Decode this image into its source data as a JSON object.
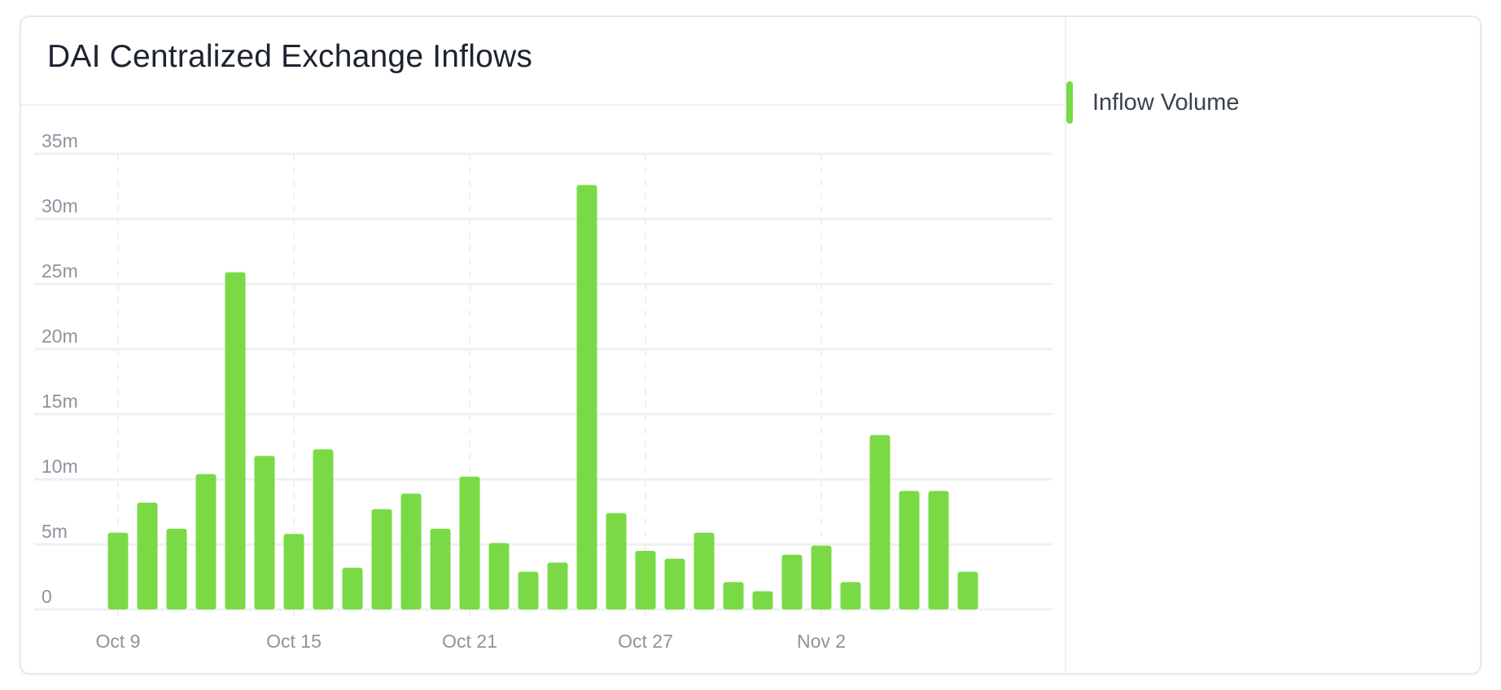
{
  "title": "DAI Centralized Exchange Inflows",
  "legend": {
    "label": "Inflow Volume",
    "color": "#7ada45"
  },
  "chart_data": {
    "type": "bar",
    "title": "DAI Centralized Exchange Inflows",
    "xlabel": "",
    "ylabel": "",
    "ylim": [
      0,
      35000000
    ],
    "yticks": [
      {
        "value": 0,
        "label": "0"
      },
      {
        "value": 5000000,
        "label": "5m"
      },
      {
        "value": 10000000,
        "label": "10m"
      },
      {
        "value": 15000000,
        "label": "15m"
      },
      {
        "value": 20000000,
        "label": "20m"
      },
      {
        "value": 25000000,
        "label": "25m"
      },
      {
        "value": 30000000,
        "label": "30m"
      },
      {
        "value": 35000000,
        "label": "35m"
      }
    ],
    "xticks": [
      {
        "date": "Oct 9",
        "label": "Oct 9"
      },
      {
        "date": "Oct 15",
        "label": "Oct 15"
      },
      {
        "date": "Oct 21",
        "label": "Oct 21"
      },
      {
        "date": "Oct 27",
        "label": "Oct 27"
      },
      {
        "date": "Nov 2",
        "label": "Nov 2"
      }
    ],
    "grid": true,
    "legend_position": "right",
    "categories": [
      "Oct 9",
      "Oct 10",
      "Oct 11",
      "Oct 12",
      "Oct 13",
      "Oct 14",
      "Oct 15",
      "Oct 16",
      "Oct 17",
      "Oct 18",
      "Oct 19",
      "Oct 20",
      "Oct 21",
      "Oct 22",
      "Oct 23",
      "Oct 24",
      "Oct 25",
      "Oct 26",
      "Oct 27",
      "Oct 28",
      "Oct 29",
      "Oct 30",
      "Oct 31",
      "Nov 1",
      "Nov 2",
      "Nov 3",
      "Nov 4",
      "Nov 5",
      "Nov 6",
      "Nov 7",
      "Nov 8"
    ],
    "series": [
      {
        "name": "Inflow Volume",
        "color": "#7ada45",
        "values": [
          5900000,
          8200000,
          6200000,
          10400000,
          25900000,
          11800000,
          5800000,
          12300000,
          3200000,
          7700000,
          8900000,
          6200000,
          10200000,
          5100000,
          2900000,
          3600000,
          32600000,
          7400000,
          4500000,
          3900000,
          5900000,
          2100000,
          1400000,
          4200000,
          4900000,
          2100000,
          13400000,
          9100000,
          9100000,
          2900000,
          0
        ]
      }
    ]
  }
}
